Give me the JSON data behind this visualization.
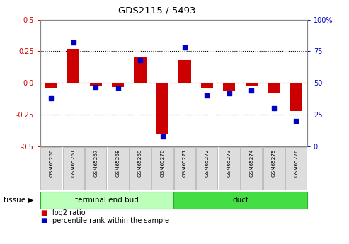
{
  "title": "GDS2115 / 5493",
  "samples": [
    "GSM65260",
    "GSM65261",
    "GSM65267",
    "GSM65268",
    "GSM65269",
    "GSM65270",
    "GSM65271",
    "GSM65272",
    "GSM65273",
    "GSM65274",
    "GSM65275",
    "GSM65276"
  ],
  "log2_ratio": [
    -0.04,
    0.27,
    -0.02,
    -0.03,
    0.2,
    -0.4,
    0.18,
    -0.04,
    -0.06,
    -0.02,
    -0.08,
    -0.22
  ],
  "percentile_rank": [
    38,
    82,
    47,
    46,
    68,
    8,
    78,
    40,
    42,
    44,
    30,
    20
  ],
  "groups": [
    {
      "label": "terminal end bud",
      "start": 0,
      "end": 6,
      "color": "#bbffbb"
    },
    {
      "label": "duct",
      "start": 6,
      "end": 12,
      "color": "#44dd44"
    }
  ],
  "ylim_left": [
    -0.5,
    0.5
  ],
  "ylim_right": [
    0,
    100
  ],
  "left_ticks": [
    -0.5,
    -0.25,
    0.0,
    0.25,
    0.5
  ],
  "right_ticks": [
    0,
    25,
    50,
    75,
    100
  ],
  "bar_color": "#cc0000",
  "dot_color": "#0000cc",
  "zero_line_color": "#cc0000",
  "grid_color": "#000000",
  "dot_size": 18,
  "bar_width": 0.55,
  "tick_label_fontsize": 7,
  "axis_label_color_left": "#cc0000",
  "axis_label_color_right": "#0000cc",
  "legend_red_label": "log2 ratio",
  "legend_blue_label": "percentile rank within the sample",
  "tissue_label": "tissue",
  "bg_color": "#ffffff",
  "plot_bg_color": "#ffffff",
  "sample_box_color": "#dddddd",
  "sample_box_edge": "#aaaaaa"
}
